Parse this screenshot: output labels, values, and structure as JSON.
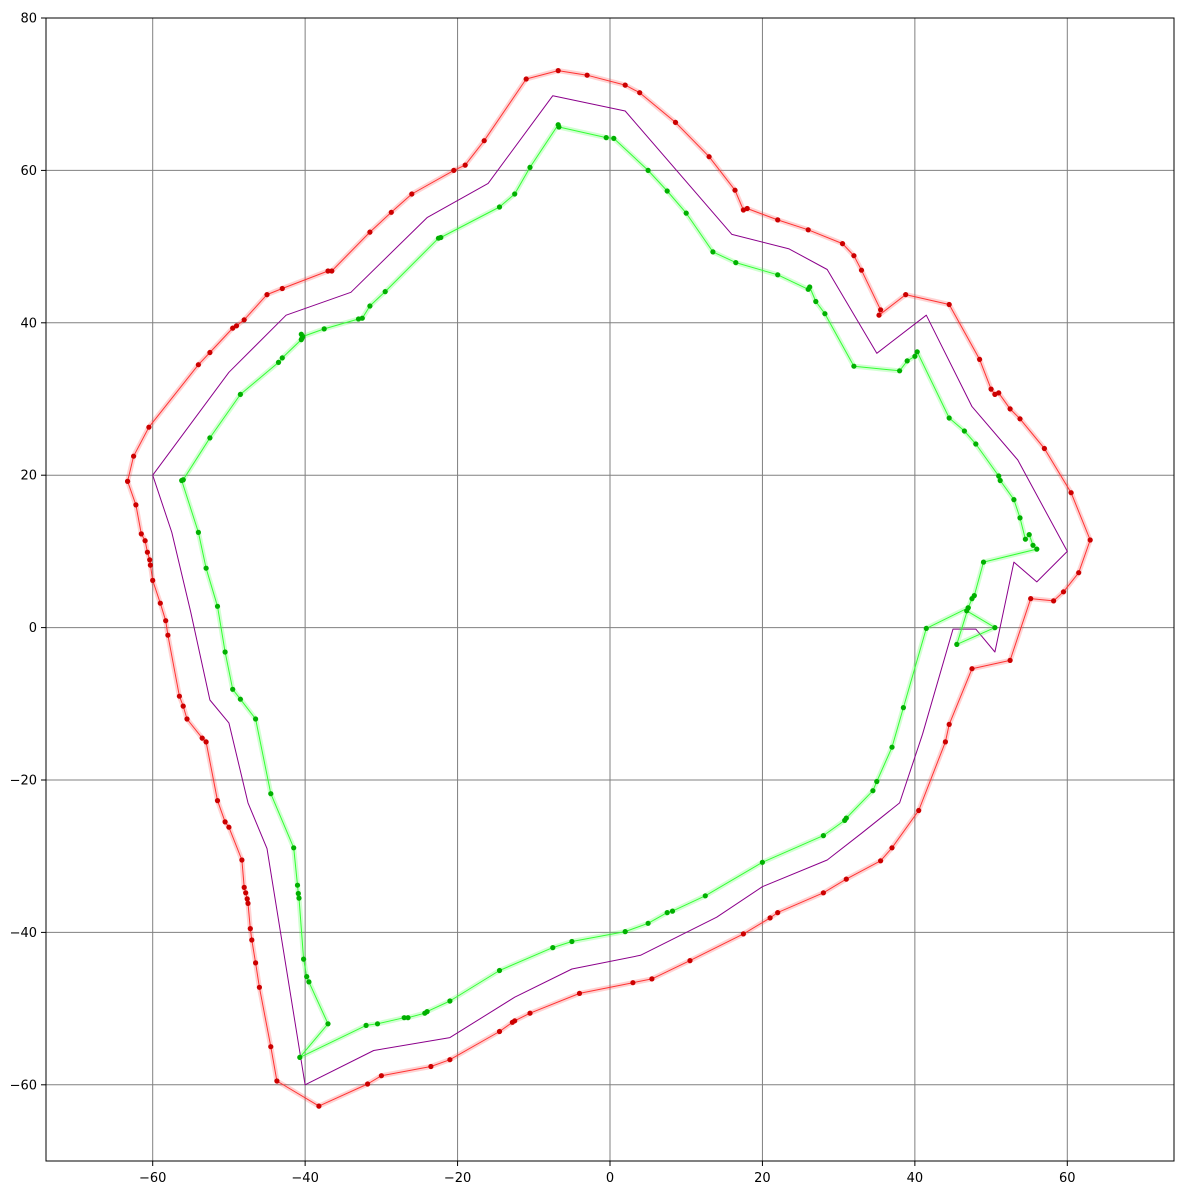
{
  "chart_data": {
    "type": "line",
    "title": "",
    "xlabel": "",
    "ylabel": "",
    "xlim": [
      -74,
      74
    ],
    "ylim": [
      -70,
      80
    ],
    "grid": true,
    "x_ticks": [
      -60,
      -40,
      -20,
      0,
      20,
      40,
      60
    ],
    "y_ticks": [
      -60,
      -40,
      -20,
      0,
      20,
      40,
      60,
      80
    ],
    "colors": {
      "outer_line": "#ff3333",
      "outer_markers": "#cc0000",
      "inner_line": "#33ff33",
      "inner_markers": "#00b000",
      "center_line": "#8b008b",
      "grid": "#808080"
    },
    "series": [
      {
        "role": "center-reference",
        "markers": false,
        "points": [
          [
            -60,
            20
          ],
          [
            -57.5,
            12.5
          ],
          [
            -55,
            2
          ],
          [
            -52.5,
            -9.5
          ],
          [
            -50,
            -12.5
          ],
          [
            -47.5,
            -23
          ],
          [
            -45,
            -29
          ],
          [
            -40,
            -60
          ],
          [
            -31,
            -55.5
          ],
          [
            -21,
            -53.8
          ],
          [
            -12.5,
            -48.5
          ],
          [
            -5,
            -44.8
          ],
          [
            4,
            -43
          ],
          [
            14,
            -38
          ],
          [
            20,
            -34
          ],
          [
            28.5,
            -30.5
          ],
          [
            33,
            -27
          ],
          [
            38,
            -23
          ],
          [
            41,
            -14
          ],
          [
            45,
            -0.2
          ],
          [
            48,
            -0.2
          ],
          [
            50.5,
            -3.2
          ],
          [
            53,
            8.6
          ],
          [
            56,
            6
          ],
          [
            60,
            10
          ],
          [
            53.5,
            22
          ],
          [
            47.5,
            29
          ],
          [
            41.5,
            41
          ],
          [
            35,
            36
          ],
          [
            28.5,
            47
          ],
          [
            23.5,
            49.7
          ],
          [
            16,
            51.6
          ],
          [
            2,
            67.8
          ],
          [
            -7.5,
            69.8
          ],
          [
            -16,
            58.3
          ],
          [
            -24,
            53.8
          ],
          [
            -34,
            44
          ],
          [
            -42.5,
            41
          ],
          [
            -50,
            33.5
          ],
          [
            -60,
            20
          ]
        ]
      },
      {
        "role": "outer-boundary",
        "markers": true,
        "points": [
          [
            -63.3,
            19.2
          ],
          [
            -62.5,
            22.5
          ],
          [
            -60.5,
            26.3
          ],
          [
            -54,
            34.5
          ],
          [
            -52.5,
            36.1
          ],
          [
            -49.5,
            39.3
          ],
          [
            -49,
            39.6
          ],
          [
            -48,
            40.4
          ],
          [
            -45,
            43.7
          ],
          [
            -43,
            44.5
          ],
          [
            -37,
            46.8
          ],
          [
            -36.5,
            46.8
          ],
          [
            -31.5,
            51.9
          ],
          [
            -28.7,
            54.5
          ],
          [
            -26,
            56.9
          ],
          [
            -20.5,
            60
          ],
          [
            -19,
            60.7
          ],
          [
            -16.5,
            63.9
          ],
          [
            -11,
            72
          ],
          [
            -6.8,
            73.1
          ],
          [
            -3,
            72.5
          ],
          [
            2,
            71.2
          ],
          [
            3.9,
            70.2
          ],
          [
            8.6,
            66.3
          ],
          [
            13,
            61.8
          ],
          [
            16.4,
            57.4
          ],
          [
            17.5,
            54.8
          ],
          [
            18,
            55
          ],
          [
            22,
            53.5
          ],
          [
            26,
            52.2
          ],
          [
            30.5,
            50.4
          ],
          [
            32,
            48.8
          ],
          [
            33,
            46.9
          ],
          [
            35.5,
            41.7
          ],
          [
            35.3,
            41
          ],
          [
            38.8,
            43.7
          ],
          [
            44.5,
            42.4
          ],
          [
            48.5,
            35.2
          ],
          [
            50,
            31.3
          ],
          [
            50.5,
            30.6
          ],
          [
            51,
            30.8
          ],
          [
            52.5,
            28.7
          ],
          [
            53.8,
            27.4
          ],
          [
            57,
            23.5
          ],
          [
            60.5,
            17.7
          ],
          [
            63,
            11.5
          ],
          [
            61.5,
            7.2
          ],
          [
            59.5,
            4.7
          ],
          [
            58.2,
            3.5
          ],
          [
            55.2,
            3.8
          ],
          [
            52.5,
            -4.3
          ],
          [
            47.5,
            -5.4
          ],
          [
            44.5,
            -12.7
          ],
          [
            44,
            -15
          ],
          [
            40.5,
            -24
          ],
          [
            37,
            -28.9
          ],
          [
            35.5,
            -30.6
          ],
          [
            31,
            -33
          ],
          [
            28,
            -34.8
          ],
          [
            22,
            -37.4
          ],
          [
            21,
            -38.1
          ],
          [
            17.5,
            -40.2
          ],
          [
            10.5,
            -43.7
          ],
          [
            5.5,
            -46.1
          ],
          [
            3,
            -46.6
          ],
          [
            -4,
            -48
          ],
          [
            -10.5,
            -50.6
          ],
          [
            -12.5,
            -51.6
          ],
          [
            -12.8,
            -51.8
          ],
          [
            -14.5,
            -53
          ],
          [
            -21,
            -56.7
          ],
          [
            -23.5,
            -57.6
          ],
          [
            -30,
            -58.8
          ],
          [
            -31.8,
            -59.9
          ],
          [
            -38.2,
            -62.8
          ],
          [
            -43.7,
            -59.5
          ],
          [
            -44.5,
            -55
          ],
          [
            -46,
            -47.2
          ],
          [
            -46.5,
            -44
          ],
          [
            -47,
            -41
          ],
          [
            -47.2,
            -39.5
          ],
          [
            -47.5,
            -36.2
          ],
          [
            -47.6,
            -35.6
          ],
          [
            -47.8,
            -34.8
          ],
          [
            -48,
            -34.1
          ],
          [
            -48.3,
            -30.5
          ],
          [
            -50,
            -26.2
          ],
          [
            -50.5,
            -25.5
          ],
          [
            -51.5,
            -22.7
          ],
          [
            -53,
            -15
          ],
          [
            -53.5,
            -14.5
          ],
          [
            -55.5,
            -12
          ],
          [
            -56,
            -10.3
          ],
          [
            -56.5,
            -9
          ],
          [
            -58,
            -1
          ],
          [
            -58.3,
            0.9
          ],
          [
            -59,
            3.2
          ],
          [
            -60,
            6.2
          ],
          [
            -60.3,
            8.2
          ],
          [
            -60.4,
            8.9
          ],
          [
            -60.7,
            9.9
          ],
          [
            -61,
            11.4
          ],
          [
            -61.5,
            12.3
          ],
          [
            -62.2,
            16.1
          ],
          [
            -63.3,
            19.2
          ]
        ]
      },
      {
        "role": "inner-boundary",
        "markers": true,
        "points": [
          [
            -56,
            19.4
          ],
          [
            -52.5,
            24.9
          ],
          [
            -48.5,
            30.6
          ],
          [
            -43.5,
            34.8
          ],
          [
            -43,
            35.4
          ],
          [
            -40.5,
            37.8
          ],
          [
            -40.3,
            38.2
          ],
          [
            -37.5,
            39.2
          ],
          [
            -33,
            40.5
          ],
          [
            -32.5,
            40.6
          ],
          [
            -31.5,
            42.2
          ],
          [
            -29.5,
            44.1
          ],
          [
            -22.5,
            51.1
          ],
          [
            -22.2,
            51.2
          ],
          [
            -14.5,
            55.2
          ],
          [
            -12.5,
            56.9
          ],
          [
            -10.5,
            60.4
          ],
          [
            -6.8,
            66
          ],
          [
            -6.7,
            65.7
          ],
          [
            -0.5,
            64.3
          ],
          [
            0.5,
            64.2
          ],
          [
            5,
            60
          ],
          [
            7.5,
            57.3
          ],
          [
            10,
            54.4
          ],
          [
            13.5,
            49.3
          ],
          [
            16.5,
            47.9
          ],
          [
            22,
            46.3
          ],
          [
            26,
            44.4
          ],
          [
            26.2,
            44.7
          ],
          [
            27,
            42.8
          ],
          [
            28.2,
            41.2
          ],
          [
            32,
            34.3
          ],
          [
            38,
            33.7
          ],
          [
            39,
            35
          ],
          [
            40,
            35.6
          ],
          [
            40.3,
            36.2
          ],
          [
            44.5,
            27.5
          ],
          [
            46.5,
            25.8
          ],
          [
            48,
            24.1
          ],
          [
            51,
            19.9
          ],
          [
            51.2,
            19.3
          ],
          [
            53,
            16.8
          ],
          [
            53.8,
            14.4
          ],
          [
            54.5,
            11.6
          ],
          [
            55,
            12.2
          ],
          [
            55.5,
            10.8
          ],
          [
            56,
            10.3
          ],
          [
            49,
            8.6
          ],
          [
            47.8,
            4.2
          ],
          [
            47.5,
            3.8
          ],
          [
            47,
            2.6
          ],
          [
            46.8,
            2.2
          ],
          [
            50.5,
            0
          ],
          [
            45.5,
            -2.2
          ],
          [
            47,
            2.6
          ],
          [
            41.5,
            -0.1
          ],
          [
            38.5,
            -10.5
          ],
          [
            37,
            -15.7
          ],
          [
            35,
            -20.2
          ],
          [
            34.5,
            -21.4
          ],
          [
            31,
            -25
          ],
          [
            30.8,
            -25.3
          ],
          [
            28,
            -27.3
          ],
          [
            20,
            -30.8
          ],
          [
            12.5,
            -35.2
          ],
          [
            8.2,
            -37.2
          ],
          [
            7.5,
            -37.4
          ],
          [
            5,
            -38.8
          ],
          [
            2,
            -39.9
          ],
          [
            -5,
            -41.2
          ],
          [
            -7.5,
            -42
          ],
          [
            -14.5,
            -45
          ],
          [
            -21,
            -49
          ],
          [
            -24,
            -50.4
          ],
          [
            -24.3,
            -50.6
          ],
          [
            -26.5,
            -51.2
          ],
          [
            -27,
            -51.2
          ],
          [
            -30.5,
            -52
          ],
          [
            -32,
            -52.2
          ],
          [
            -40.7,
            -56.4
          ],
          [
            -37,
            -52
          ],
          [
            -39.5,
            -46.5
          ],
          [
            -39.8,
            -45.8
          ],
          [
            -40.2,
            -43.5
          ],
          [
            -40.8,
            -35.5
          ],
          [
            -40.9,
            -34.9
          ],
          [
            -41,
            -33.8
          ],
          [
            -41.5,
            -28.9
          ],
          [
            -44.5,
            -21.8
          ],
          [
            -46.5,
            -12
          ],
          [
            -48.5,
            -9.4
          ],
          [
            -49.5,
            -8.1
          ],
          [
            -50.5,
            -3.2
          ],
          [
            -51.5,
            2.8
          ],
          [
            -53,
            7.8
          ],
          [
            -54,
            12.5
          ],
          [
            -56.2,
            19.3
          ],
          [
            -56,
            19.4
          ]
        ]
      },
      {
        "role": "inner-spur",
        "markers": true,
        "points": [
          [
            -40.5,
            38.5
          ],
          [
            -40.4,
            38
          ]
        ]
      }
    ]
  }
}
